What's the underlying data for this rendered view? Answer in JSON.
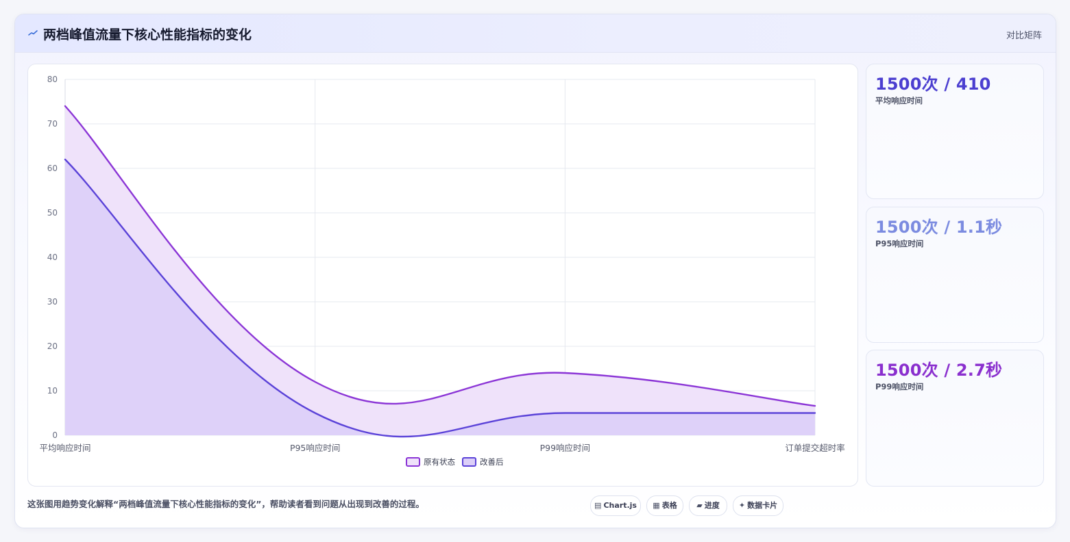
{
  "header": {
    "title": "两档峰值流量下核心性能指标的变化",
    "matrix_link": "对比矩阵"
  },
  "chart_data": {
    "type": "area",
    "categories": [
      "平均响应时间",
      "P95响应时间",
      "P99响应时间",
      "订单提交超时率"
    ],
    "series": [
      {
        "name": "原有状态",
        "values": [
          74,
          12,
          14,
          6.6
        ],
        "color": "#8b35d6",
        "fill": "#efe2fa"
      },
      {
        "name": "改善后",
        "values": [
          62,
          5,
          5,
          5
        ],
        "color": "#5a42d8",
        "fill": "#dccff8"
      }
    ],
    "ylim": [
      0,
      80
    ],
    "yticks": [
      0,
      10,
      20,
      30,
      40,
      50,
      60,
      70,
      80
    ],
    "grid": true,
    "legend": "bottom"
  },
  "stats": [
    {
      "value": "1500次 / 410",
      "label": "平均响应时间",
      "color": "#4b3ed0"
    },
    {
      "value": "1500次 / 1.1秒",
      "label": "P95响应时间",
      "color": "#7b8be0"
    },
    {
      "value": "1500次 / 2.7秒",
      "label": "P99响应时间",
      "color": "#8a2fce"
    }
  ],
  "caption": "这张图用趋势变化解释“两档峰值流量下核心性能指标的变化”，帮助读者看到问题从出现到改善的过程。",
  "chips": [
    {
      "icon": "▤",
      "label": "Chart.js",
      "icon_name": "chart-icon"
    },
    {
      "icon": "▦",
      "label": "表格",
      "icon_name": "table-icon"
    },
    {
      "icon": "▰",
      "label": "进度",
      "icon_name": "progress-icon"
    },
    {
      "icon": "✦",
      "label": "数据卡片",
      "icon_name": "sparkle-icon"
    }
  ]
}
